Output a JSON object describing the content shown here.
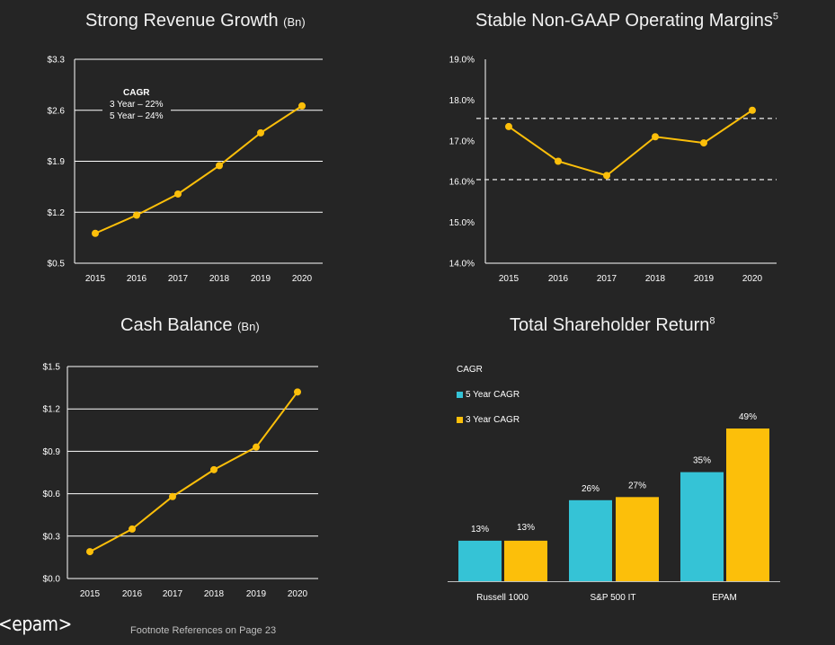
{
  "colors": {
    "background": "#252525",
    "gold": "#fcbf0a",
    "cyan": "#35c3d6",
    "grid": "#ffffff",
    "dashed": "#d9d9d9"
  },
  "revenue": {
    "title": "Strong Revenue Growth",
    "unit": "(Bn)",
    "cagr": {
      "heading": "CAGR",
      "lines": [
        "3 Year – 22%",
        "5 Year – 24%"
      ]
    }
  },
  "margins": {
    "title": "Stable Non-GAAP Operating Margins",
    "footnote_ref": "5"
  },
  "cash": {
    "title": "Cash Balance",
    "unit": "(Bn)"
  },
  "tsr": {
    "title": "Total Shareholder Return",
    "footnote_ref": "8",
    "legend": {
      "heading": "CAGR",
      "five_year": "5 Year CAGR",
      "three_year": "3 Year CAGR"
    }
  },
  "chart_data": [
    {
      "id": "revenue",
      "type": "line",
      "title": "Strong Revenue Growth (Bn)",
      "categories": [
        "2015",
        "2016",
        "2017",
        "2018",
        "2019",
        "2020"
      ],
      "values": [
        0.91,
        1.16,
        1.45,
        1.84,
        2.29,
        2.66
      ],
      "yticks": [
        "$3.3",
        "$2.6",
        "$1.9",
        "$1.2",
        "$0.5"
      ],
      "ytick_values": [
        3.3,
        2.6,
        1.9,
        1.2,
        0.5
      ],
      "ylim": [
        0.5,
        3.3
      ],
      "grid": true
    },
    {
      "id": "margins",
      "type": "line",
      "title": "Stable Non-GAAP Operating Margins",
      "categories": [
        "2015",
        "2016",
        "2017",
        "2018",
        "2019",
        "2020"
      ],
      "values": [
        17.35,
        16.5,
        16.15,
        17.1,
        16.95,
        17.75
      ],
      "yticks": [
        "19.0%",
        "18.0%",
        "17.0%",
        "16.0%",
        "15.0%",
        "14.0%"
      ],
      "ytick_values": [
        19,
        18,
        17,
        16,
        15,
        14
      ],
      "ylim": [
        14,
        19
      ],
      "reference_lines": [
        17.55,
        16.05
      ],
      "grid": false
    },
    {
      "id": "cash",
      "type": "line",
      "title": "Cash Balance (Bn)",
      "categories": [
        "2015",
        "2016",
        "2017",
        "2018",
        "2019",
        "2020"
      ],
      "values": [
        0.19,
        0.35,
        0.58,
        0.77,
        0.93,
        1.32
      ],
      "yticks": [
        "$1.5",
        "$1.2",
        "$0.9",
        "$0.6",
        "$0.3",
        "$0.0"
      ],
      "ytick_values": [
        1.5,
        1.2,
        0.9,
        0.6,
        0.3,
        0.0
      ],
      "ylim": [
        0,
        1.5
      ],
      "grid": true
    },
    {
      "id": "tsr",
      "type": "bar",
      "title": "Total Shareholder Return",
      "categories": [
        "Russell 1000",
        "S&P 500 IT",
        "EPAM"
      ],
      "series": [
        {
          "name": "5 Year CAGR",
          "values": [
            13,
            26,
            35
          ],
          "labels": [
            "13%",
            "26%",
            "35%"
          ]
        },
        {
          "name": "3 Year CAGR",
          "values": [
            13,
            27,
            49
          ],
          "labels": [
            "13%",
            "27%",
            "49%"
          ]
        }
      ],
      "ylim": [
        0,
        49
      ]
    }
  ],
  "footer": {
    "logo": "<epam>",
    "footnote": "Footnote References on Page 23"
  }
}
